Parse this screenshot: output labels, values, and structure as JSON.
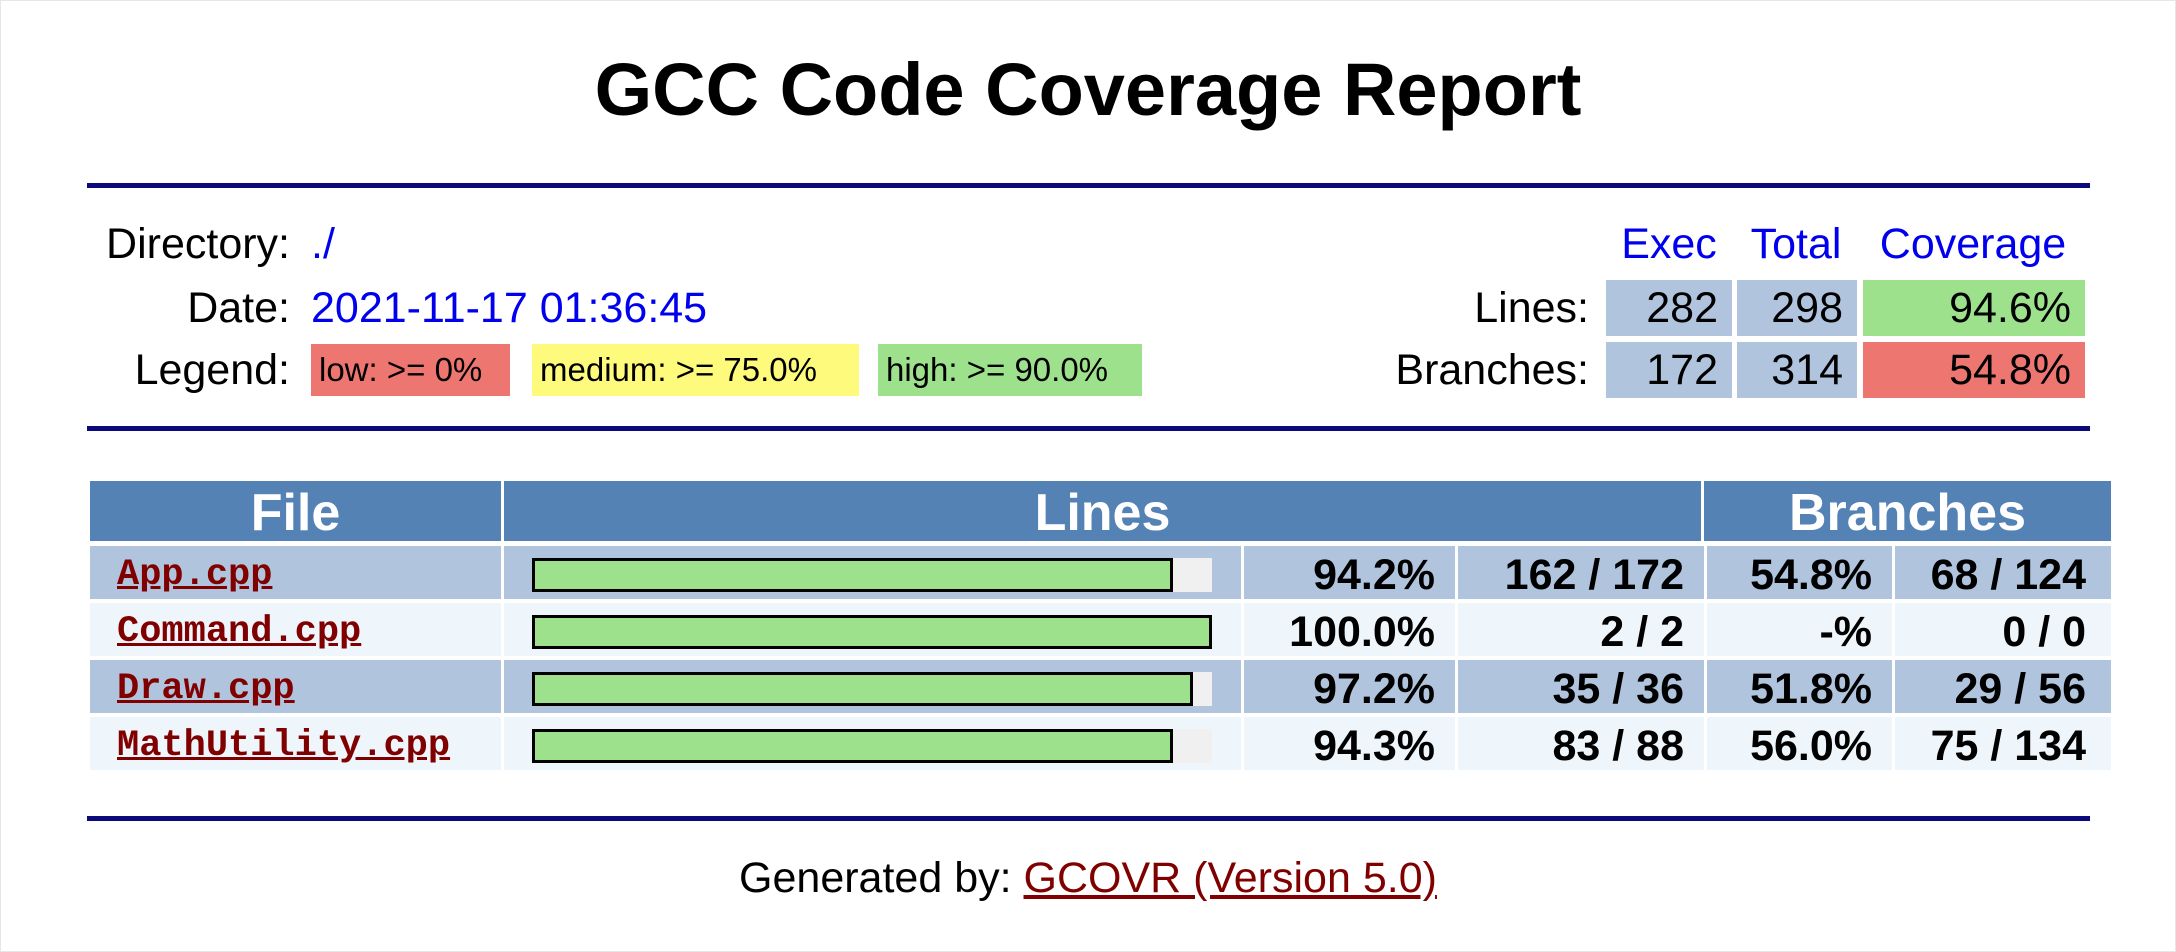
{
  "title": "GCC Code Coverage Report",
  "info": {
    "directory_label": "Directory:",
    "directory_value": "./",
    "date_label": "Date:",
    "date_value": "2021-11-17 01:36:45",
    "legend_label": "Legend:",
    "legend": [
      {
        "text": "low: >= 0%",
        "color": "#ee7670"
      },
      {
        "text": "medium: >= 75.0%",
        "color": "#fdfa7c"
      },
      {
        "text": "high: >= 90.0%",
        "color": "#9de18d"
      }
    ]
  },
  "summary": {
    "headers": {
      "exec": "Exec",
      "total": "Total",
      "coverage": "Coverage"
    },
    "lines": {
      "label": "Lines:",
      "exec": "282",
      "total": "298",
      "coverage": "94.6%",
      "level": "high"
    },
    "branches": {
      "label": "Branches:",
      "exec": "172",
      "total": "314",
      "coverage": "54.8%",
      "level": "low"
    }
  },
  "table": {
    "headers": {
      "file": "File",
      "lines": "Lines",
      "branches": "Branches"
    },
    "rows": [
      {
        "file": "App.cpp",
        "line_pct": "94.2%",
        "line_count": "162 / 172",
        "line_cov": 0.942,
        "branch_pct": "54.8%",
        "branch_count": "68 / 124"
      },
      {
        "file": "Command.cpp",
        "line_pct": "100.0%",
        "line_count": "2 / 2",
        "line_cov": 1.0,
        "branch_pct": "-%",
        "branch_count": "0 / 0"
      },
      {
        "file": "Draw.cpp",
        "line_pct": "97.2%",
        "line_count": "35 / 36",
        "line_cov": 0.972,
        "branch_pct": "51.8%",
        "branch_count": "29 / 56"
      },
      {
        "file": "MathUtility.cpp",
        "line_pct": "94.3%",
        "line_count": "83 / 88",
        "line_cov": 0.943,
        "branch_pct": "56.0%",
        "branch_count": "75 / 134"
      }
    ]
  },
  "footer": {
    "prefix": "Generated by: ",
    "link": "GCOVR (Version 5.0)"
  },
  "colors": {
    "low": "#ee7670",
    "medium": "#fdfa7c",
    "high": "#9de18d",
    "header_bg": "#5482b4",
    "row_odd": "#b0c4de",
    "row_even": "#eef5fb",
    "rule": "#0a0a7a",
    "link": "#800000"
  }
}
